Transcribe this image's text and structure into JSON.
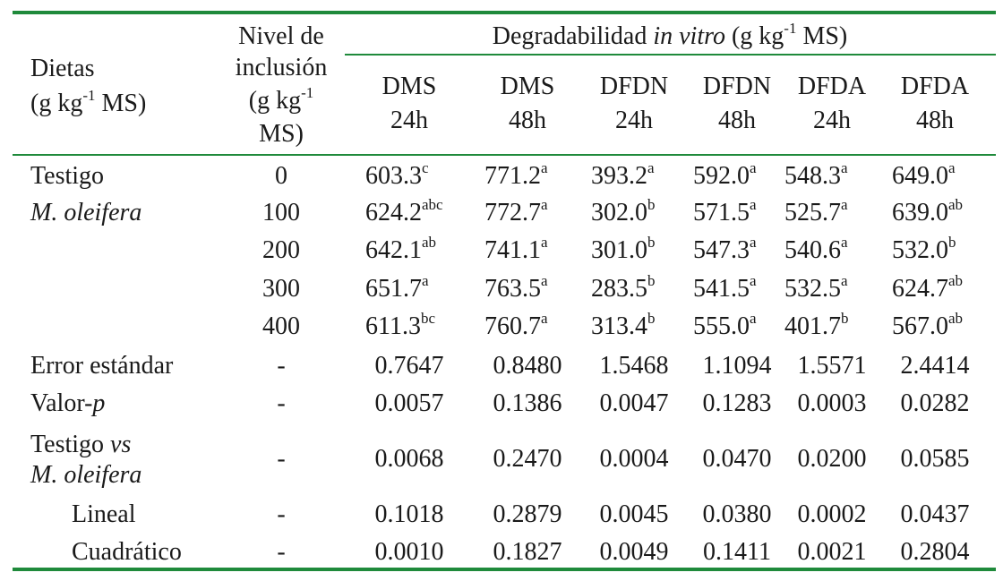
{
  "header": {
    "dietas": [
      "Dietas",
      "(g kg",
      "-1",
      " MS)"
    ],
    "nivel": [
      "Nivel de",
      "inclusión",
      "(g kg",
      "-1",
      "MS)"
    ],
    "group": [
      "Degradabilidad ",
      "in vitro",
      " (g kg",
      "-1",
      " MS)"
    ],
    "cols": [
      [
        "DMS",
        "24h"
      ],
      [
        "DMS",
        "48h"
      ],
      [
        "DFDN",
        "24h"
      ],
      [
        "DFDN",
        "48h"
      ],
      [
        "DFDA",
        "24h"
      ],
      [
        "DFDA",
        "48h"
      ]
    ]
  },
  "rows": [
    {
      "label": "Testigo",
      "level": "0",
      "cells": [
        [
          "603.3",
          "c"
        ],
        [
          "771.2",
          "a"
        ],
        [
          "393.2",
          "a"
        ],
        [
          "592.0",
          "a"
        ],
        [
          "548.3",
          "a"
        ],
        [
          "649.0",
          "a"
        ]
      ]
    },
    {
      "label": "M. oleifera",
      "level": "100",
      "cells": [
        [
          "624.2",
          "abc"
        ],
        [
          "772.7",
          "a"
        ],
        [
          "302.0",
          "b"
        ],
        [
          "571.5",
          "a"
        ],
        [
          "525.7",
          "a"
        ],
        [
          "639.0",
          "ab"
        ]
      ]
    },
    {
      "label": "",
      "level": "200",
      "cells": [
        [
          "642.1",
          "ab"
        ],
        [
          "741.1",
          "a"
        ],
        [
          "301.0",
          "b"
        ],
        [
          "547.3",
          "a"
        ],
        [
          "540.6",
          "a"
        ],
        [
          "532.0",
          "b"
        ]
      ]
    },
    {
      "label": "",
      "level": "300",
      "cells": [
        [
          "651.7",
          "a"
        ],
        [
          "763.5",
          "a"
        ],
        [
          "283.5",
          "b"
        ],
        [
          "541.5",
          "a"
        ],
        [
          "532.5",
          "a"
        ],
        [
          "624.7",
          "ab"
        ]
      ]
    },
    {
      "label": "",
      "level": "400",
      "cells": [
        [
          "611.3",
          "bc"
        ],
        [
          "760.7",
          "a"
        ],
        [
          "313.4",
          "b"
        ],
        [
          "555.0",
          "a"
        ],
        [
          "401.7",
          "b"
        ],
        [
          "567.0",
          "ab"
        ]
      ]
    }
  ],
  "stats": [
    {
      "label": [
        "Error estándar"
      ],
      "level": "-",
      "values": [
        "0.7647",
        "0.8480",
        "1.5468",
        "1.1094",
        "1.5571",
        "2.4414"
      ]
    },
    {
      "label": [
        "Valor-",
        "p"
      ],
      "level": "-",
      "values": [
        "0.0057",
        "0.1386",
        "0.0047",
        "0.1283",
        "0.0003",
        "0.0282"
      ]
    },
    {
      "label": [
        "Testigo ",
        "vs",
        "M. oleifera"
      ],
      "level": "-",
      "values": [
        "0.0068",
        "0.2470",
        "0.0004",
        "0.0470",
        "0.0200",
        "0.0585"
      ]
    },
    {
      "label": [
        "Lineal"
      ],
      "level": "-",
      "values": [
        "0.1018",
        "0.2879",
        "0.0045",
        "0.0380",
        "0.0002",
        "0.0437"
      ]
    },
    {
      "label": [
        "Cuadrático"
      ],
      "level": "-",
      "values": [
        "0.0010",
        "0.1827",
        "0.0049",
        "0.1411",
        "0.0021",
        "0.2804"
      ]
    }
  ],
  "colors": {
    "rule": "#1f8a3b",
    "text": "#1a1a1a"
  }
}
